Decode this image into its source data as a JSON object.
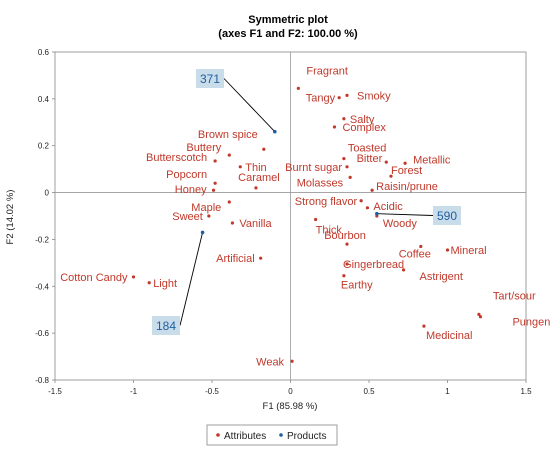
{
  "chart_data": {
    "type": "scatter",
    "title": "Symmetric plot",
    "subtitle": "(axes F1 and F2: 100.00 %)",
    "xlabel": "F1 (85.98 %)",
    "ylabel": "F2 (14.02 %)",
    "xlim": [
      -1.5,
      1.5
    ],
    "ylim": [
      -0.8,
      0.6
    ],
    "xticks": [
      "-1.5",
      "-1",
      "-0.5",
      "0",
      "0.5",
      "1",
      "1.5"
    ],
    "yticks": [
      "-0.8",
      "-0.6",
      "-0.4",
      "-0.2",
      "0",
      "0.2",
      "0.4",
      "0.6"
    ],
    "legend": {
      "position": "bottom-center",
      "entries": [
        "Attributes",
        "Products"
      ]
    },
    "colors": {
      "attributes": "#c0392b",
      "products": "#1f5f9f",
      "callout_fill": "#c9dcea",
      "connector": "#000000"
    },
    "series": [
      {
        "name": "Attributes",
        "points": [
          {
            "label": "Fragrant",
            "x": 0.05,
            "y": 0.445
          },
          {
            "label": "Smoky",
            "x": 0.36,
            "y": 0.415
          },
          {
            "label": "Tangy",
            "x": 0.31,
            "y": 0.405
          },
          {
            "label": "Salty",
            "x": 0.34,
            "y": 0.315
          },
          {
            "label": "Complex",
            "x": 0.28,
            "y": 0.28
          },
          {
            "label": "Brown spice",
            "x": -0.17,
            "y": 0.185
          },
          {
            "label": "Buttery",
            "x": -0.39,
            "y": 0.16
          },
          {
            "label": "Butterscotch",
            "x": -0.48,
            "y": 0.135
          },
          {
            "label": "Thin",
            "x": -0.32,
            "y": 0.11
          },
          {
            "label": "Toasted",
            "x": 0.34,
            "y": 0.145
          },
          {
            "label": "Burnt sugar",
            "x": 0.36,
            "y": 0.11
          },
          {
            "label": "Bitter",
            "x": 0.61,
            "y": 0.13
          },
          {
            "label": "Metallic",
            "x": 0.73,
            "y": 0.125
          },
          {
            "label": "Forest",
            "x": 0.64,
            "y": 0.07
          },
          {
            "label": "Popcorn",
            "x": -0.48,
            "y": 0.04
          },
          {
            "label": "Caramel",
            "x": -0.22,
            "y": 0.02
          },
          {
            "label": "Honey",
            "x": -0.49,
            "y": 0.01
          },
          {
            "label": "Molasses",
            "x": 0.38,
            "y": 0.065
          },
          {
            "label": "Raisin/prune",
            "x": 0.52,
            "y": 0.01
          },
          {
            "label": "Maple",
            "x": -0.39,
            "y": -0.04
          },
          {
            "label": "Strong flavor",
            "x": 0.45,
            "y": -0.035
          },
          {
            "label": "Acidic",
            "x": 0.49,
            "y": -0.065
          },
          {
            "label": "Sweet",
            "x": -0.52,
            "y": -0.1
          },
          {
            "label": "Vanilla",
            "x": -0.37,
            "y": -0.13
          },
          {
            "label": "Thick",
            "x": 0.16,
            "y": -0.115
          },
          {
            "label": "Woody",
            "x": 0.55,
            "y": -0.1
          },
          {
            "label": "Bourbon",
            "x": 0.36,
            "y": -0.22
          },
          {
            "label": "Coffee",
            "x": 0.83,
            "y": -0.23
          },
          {
            "label": "Mineral",
            "x": 1.0,
            "y": -0.245
          },
          {
            "label": "Artificial",
            "x": -0.19,
            "y": -0.28
          },
          {
            "label": "Gingerbread",
            "x": 0.36,
            "y": -0.305
          },
          {
            "label": "Astrigent",
            "x": 0.72,
            "y": -0.33
          },
          {
            "label": "Earthy",
            "x": 0.34,
            "y": -0.355
          },
          {
            "label": "Cotton Candy",
            "x": -1.0,
            "y": -0.36
          },
          {
            "label": "Light",
            "x": -0.9,
            "y": -0.385
          },
          {
            "label": "Tart/sour",
            "x": 1.2,
            "y": -0.52
          },
          {
            "label": "Pungent",
            "x": 1.21,
            "y": -0.53
          },
          {
            "label": "Medicinal",
            "x": 0.85,
            "y": -0.57
          },
          {
            "label": "Weak",
            "x": 0.01,
            "y": -0.72
          }
        ]
      },
      {
        "name": "Products",
        "points": [
          {
            "label": "371",
            "x": -0.1,
            "y": 0.26
          },
          {
            "label": "590",
            "x": 0.55,
            "y": -0.09
          },
          {
            "label": "184",
            "x": -0.56,
            "y": -0.17
          }
        ]
      }
    ]
  }
}
